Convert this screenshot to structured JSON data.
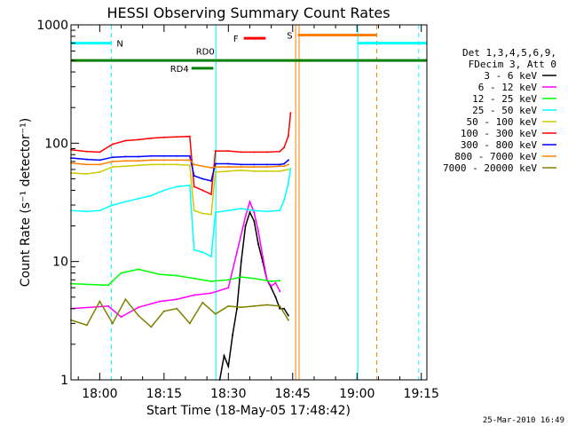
{
  "chart_data": {
    "type": "line",
    "title": "HESSI Observing Summary Count Rates",
    "xlabel": "Start Time (18-May-05 17:48:42)",
    "ylabel": "Count Rate (s⁻¹ detector⁻¹)",
    "ylog": true,
    "ylim": [
      1,
      1000
    ],
    "xlim_min": [
      -6.7,
      76.3
    ],
    "y_ticks": [
      "1",
      "10",
      "100",
      "1000"
    ],
    "x_ticks": [
      {
        "label": "18:00",
        "t": 0
      },
      {
        "label": "18:15",
        "t": 15
      },
      {
        "label": "18:30",
        "t": 30
      },
      {
        "label": "18:45",
        "t": 45
      },
      {
        "label": "19:00",
        "t": 60
      },
      {
        "label": "19:15",
        "t": 75
      }
    ],
    "legend": {
      "header": [
        "Det 1,3,4,5,6,9,",
        "FDecim 3, Att 0"
      ],
      "placement": "right"
    },
    "series": [
      {
        "name": "3 - 6 keV",
        "color": "#000000",
        "points": [
          [
            28,
            1
          ],
          [
            29,
            1.6
          ],
          [
            30,
            1.3
          ],
          [
            31,
            2.4
          ],
          [
            32,
            4
          ],
          [
            33,
            10
          ],
          [
            34,
            20
          ],
          [
            35,
            26
          ],
          [
            36,
            22
          ],
          [
            37,
            14
          ],
          [
            38,
            10
          ],
          [
            39,
            7
          ],
          [
            40,
            6
          ],
          [
            41,
            5
          ],
          [
            42,
            4
          ],
          [
            43,
            4
          ],
          [
            44,
            3.5
          ]
        ]
      },
      {
        "name": "6 - 12 keV",
        "color": "#ff00ff",
        "points": [
          [
            -6.7,
            4
          ],
          [
            2,
            4.2
          ],
          [
            5,
            3.4
          ],
          [
            9,
            4.1
          ],
          [
            14,
            4.6
          ],
          [
            18,
            4.8
          ],
          [
            22,
            5.2
          ],
          [
            26,
            5.4
          ],
          [
            30,
            6
          ],
          [
            32,
            12
          ],
          [
            34,
            24
          ],
          [
            35,
            32
          ],
          [
            36,
            26
          ],
          [
            37,
            18
          ],
          [
            38,
            11
          ],
          [
            39,
            7
          ],
          [
            40,
            6.2
          ],
          [
            41,
            6.6
          ],
          [
            42,
            5.6
          ]
        ]
      },
      {
        "name": "12 - 25 keV",
        "color": "#00ff00",
        "points": [
          [
            -6.7,
            6.5
          ],
          [
            2,
            6.3
          ],
          [
            5,
            8
          ],
          [
            9,
            8.6
          ],
          [
            14,
            7.8
          ],
          [
            18,
            7.6
          ],
          [
            22,
            7.2
          ],
          [
            26,
            6.8
          ],
          [
            30,
            7
          ],
          [
            33,
            7.4
          ],
          [
            36,
            7.2
          ],
          [
            40,
            6.8
          ],
          [
            42,
            6.9
          ]
        ]
      },
      {
        "name": "25 - 50 keV",
        "color": "#00ffff",
        "points": [
          [
            -6.7,
            27
          ],
          [
            -3,
            26.5
          ],
          [
            0,
            27
          ],
          [
            3,
            30
          ],
          [
            6,
            32
          ],
          [
            9,
            34
          ],
          [
            12,
            36
          ],
          [
            15,
            40
          ],
          [
            18,
            43
          ],
          [
            21,
            44
          ],
          [
            22,
            12.5
          ],
          [
            24,
            12
          ],
          [
            26,
            11
          ],
          [
            27,
            26
          ],
          [
            30,
            27
          ],
          [
            33,
            28
          ],
          [
            36,
            27
          ],
          [
            39,
            26.5
          ],
          [
            42,
            27
          ],
          [
            43,
            33
          ],
          [
            44,
            46
          ],
          [
            44.5,
            61
          ]
        ]
      },
      {
        "name": "50 - 100 keV",
        "color": "#cccc00",
        "points": [
          [
            -6.7,
            56
          ],
          [
            -3,
            55
          ],
          [
            0,
            57
          ],
          [
            3,
            63
          ],
          [
            6,
            64
          ],
          [
            9,
            65
          ],
          [
            12,
            66
          ],
          [
            15,
            66
          ],
          [
            18,
            66
          ],
          [
            21,
            65
          ],
          [
            22,
            27
          ],
          [
            24,
            25.5
          ],
          [
            26,
            25
          ],
          [
            27,
            57
          ],
          [
            30,
            58
          ],
          [
            33,
            59
          ],
          [
            36,
            58
          ],
          [
            39,
            58
          ],
          [
            42,
            58
          ],
          [
            43,
            59
          ],
          [
            44,
            60
          ]
        ]
      },
      {
        "name": "100 - 300 keV",
        "color": "#ff0000",
        "points": [
          [
            -6.7,
            88
          ],
          [
            -3,
            85
          ],
          [
            0,
            84
          ],
          [
            3,
            98
          ],
          [
            6,
            105
          ],
          [
            9,
            107
          ],
          [
            12,
            110
          ],
          [
            15,
            112
          ],
          [
            18,
            113
          ],
          [
            21,
            114
          ],
          [
            22,
            43
          ],
          [
            24,
            40
          ],
          [
            26,
            37
          ],
          [
            27,
            86
          ],
          [
            30,
            86
          ],
          [
            33,
            84
          ],
          [
            36,
            84
          ],
          [
            39,
            84
          ],
          [
            42,
            85
          ],
          [
            43,
            92
          ],
          [
            44,
            115
          ],
          [
            44.5,
            180
          ]
        ]
      },
      {
        "name": "300 - 800 keV",
        "color": "#0000ff",
        "points": [
          [
            -6.7,
            75
          ],
          [
            -3,
            73
          ],
          [
            0,
            72
          ],
          [
            3,
            76
          ],
          [
            6,
            77
          ],
          [
            9,
            77
          ],
          [
            12,
            78
          ],
          [
            15,
            78
          ],
          [
            18,
            78
          ],
          [
            21,
            78
          ],
          [
            22,
            53
          ],
          [
            24,
            50
          ],
          [
            26,
            48
          ],
          [
            27,
            67
          ],
          [
            30,
            67
          ],
          [
            33,
            66
          ],
          [
            36,
            66
          ],
          [
            39,
            66
          ],
          [
            42,
            66
          ],
          [
            43,
            67
          ],
          [
            44,
            72
          ]
        ]
      },
      {
        "name": "800 - 7000 keV",
        "color": "#ff8000",
        "points": [
          [
            -6.7,
            68
          ],
          [
            -3,
            66
          ],
          [
            0,
            66
          ],
          [
            3,
            70
          ],
          [
            6,
            71
          ],
          [
            9,
            71
          ],
          [
            12,
            72
          ],
          [
            15,
            72
          ],
          [
            18,
            72
          ],
          [
            21,
            72
          ],
          [
            22,
            66
          ],
          [
            24,
            64
          ],
          [
            26,
            62
          ],
          [
            27,
            63
          ],
          [
            30,
            63
          ],
          [
            33,
            63
          ],
          [
            36,
            63
          ],
          [
            39,
            63
          ],
          [
            42,
            64
          ],
          [
            43,
            64
          ],
          [
            44,
            66
          ]
        ]
      },
      {
        "name": "7000 - 20000 keV",
        "color": "#808000",
        "points": [
          [
            -6.7,
            3.2
          ],
          [
            -3,
            2.9
          ],
          [
            0,
            4.6
          ],
          [
            3,
            3
          ],
          [
            6,
            4.8
          ],
          [
            9,
            3.5
          ],
          [
            12,
            2.8
          ],
          [
            15,
            3.8
          ],
          [
            18,
            4
          ],
          [
            21,
            3
          ],
          [
            24,
            4.5
          ],
          [
            27,
            3.6
          ],
          [
            30,
            4.2
          ],
          [
            33,
            4.1
          ],
          [
            36,
            4.2
          ],
          [
            39,
            4.3
          ],
          [
            42,
            4.2
          ],
          [
            44,
            3.2
          ]
        ]
      }
    ],
    "flag_bars": [
      {
        "label": "N",
        "color": "#00ffff",
        "segments": [
          [
            -6.7,
            2.7
          ],
          [
            60.2,
            76.3
          ]
        ],
        "y": 700
      },
      {
        "label": "",
        "color": "#008000",
        "segments": [
          [
            -6.7,
            76.3
          ]
        ],
        "y": 500
      },
      {
        "label": "RD0",
        "color": "#008000",
        "segments": [],
        "y": 600
      },
      {
        "label": "RD4",
        "color": "#008000",
        "segments": [
          [
            21.4,
            26.5
          ]
        ],
        "y": 430
      },
      {
        "label": "F",
        "color": "#ff0000",
        "segments": [
          [
            33.6,
            38.7
          ]
        ],
        "y": 770
      },
      {
        "label": "S",
        "color": "#ff8000",
        "segments": [
          [
            46.2,
            64.6
          ]
        ],
        "y": 820
      }
    ],
    "markers": [
      {
        "t": -6.7,
        "color": "#00ffff",
        "style": "solid"
      },
      {
        "t": 2.7,
        "color": "#00ffff",
        "style": "dashed"
      },
      {
        "t": 27.1,
        "color": "#00ffff",
        "style": "solid"
      },
      {
        "t": 45.7,
        "color": "#ff8000",
        "style": "solid"
      },
      {
        "t": 46.5,
        "color": "#ff8000",
        "style": "solid"
      },
      {
        "t": 60.2,
        "color": "#00ffff",
        "style": "solid"
      },
      {
        "t": 64.6,
        "color": "#ff8000",
        "style": "dashed"
      },
      {
        "t": 74.4,
        "color": "#00ffff",
        "style": "dashed"
      }
    ]
  },
  "footer": {
    "timestamp": "25-Mar-2010 16:49"
  }
}
